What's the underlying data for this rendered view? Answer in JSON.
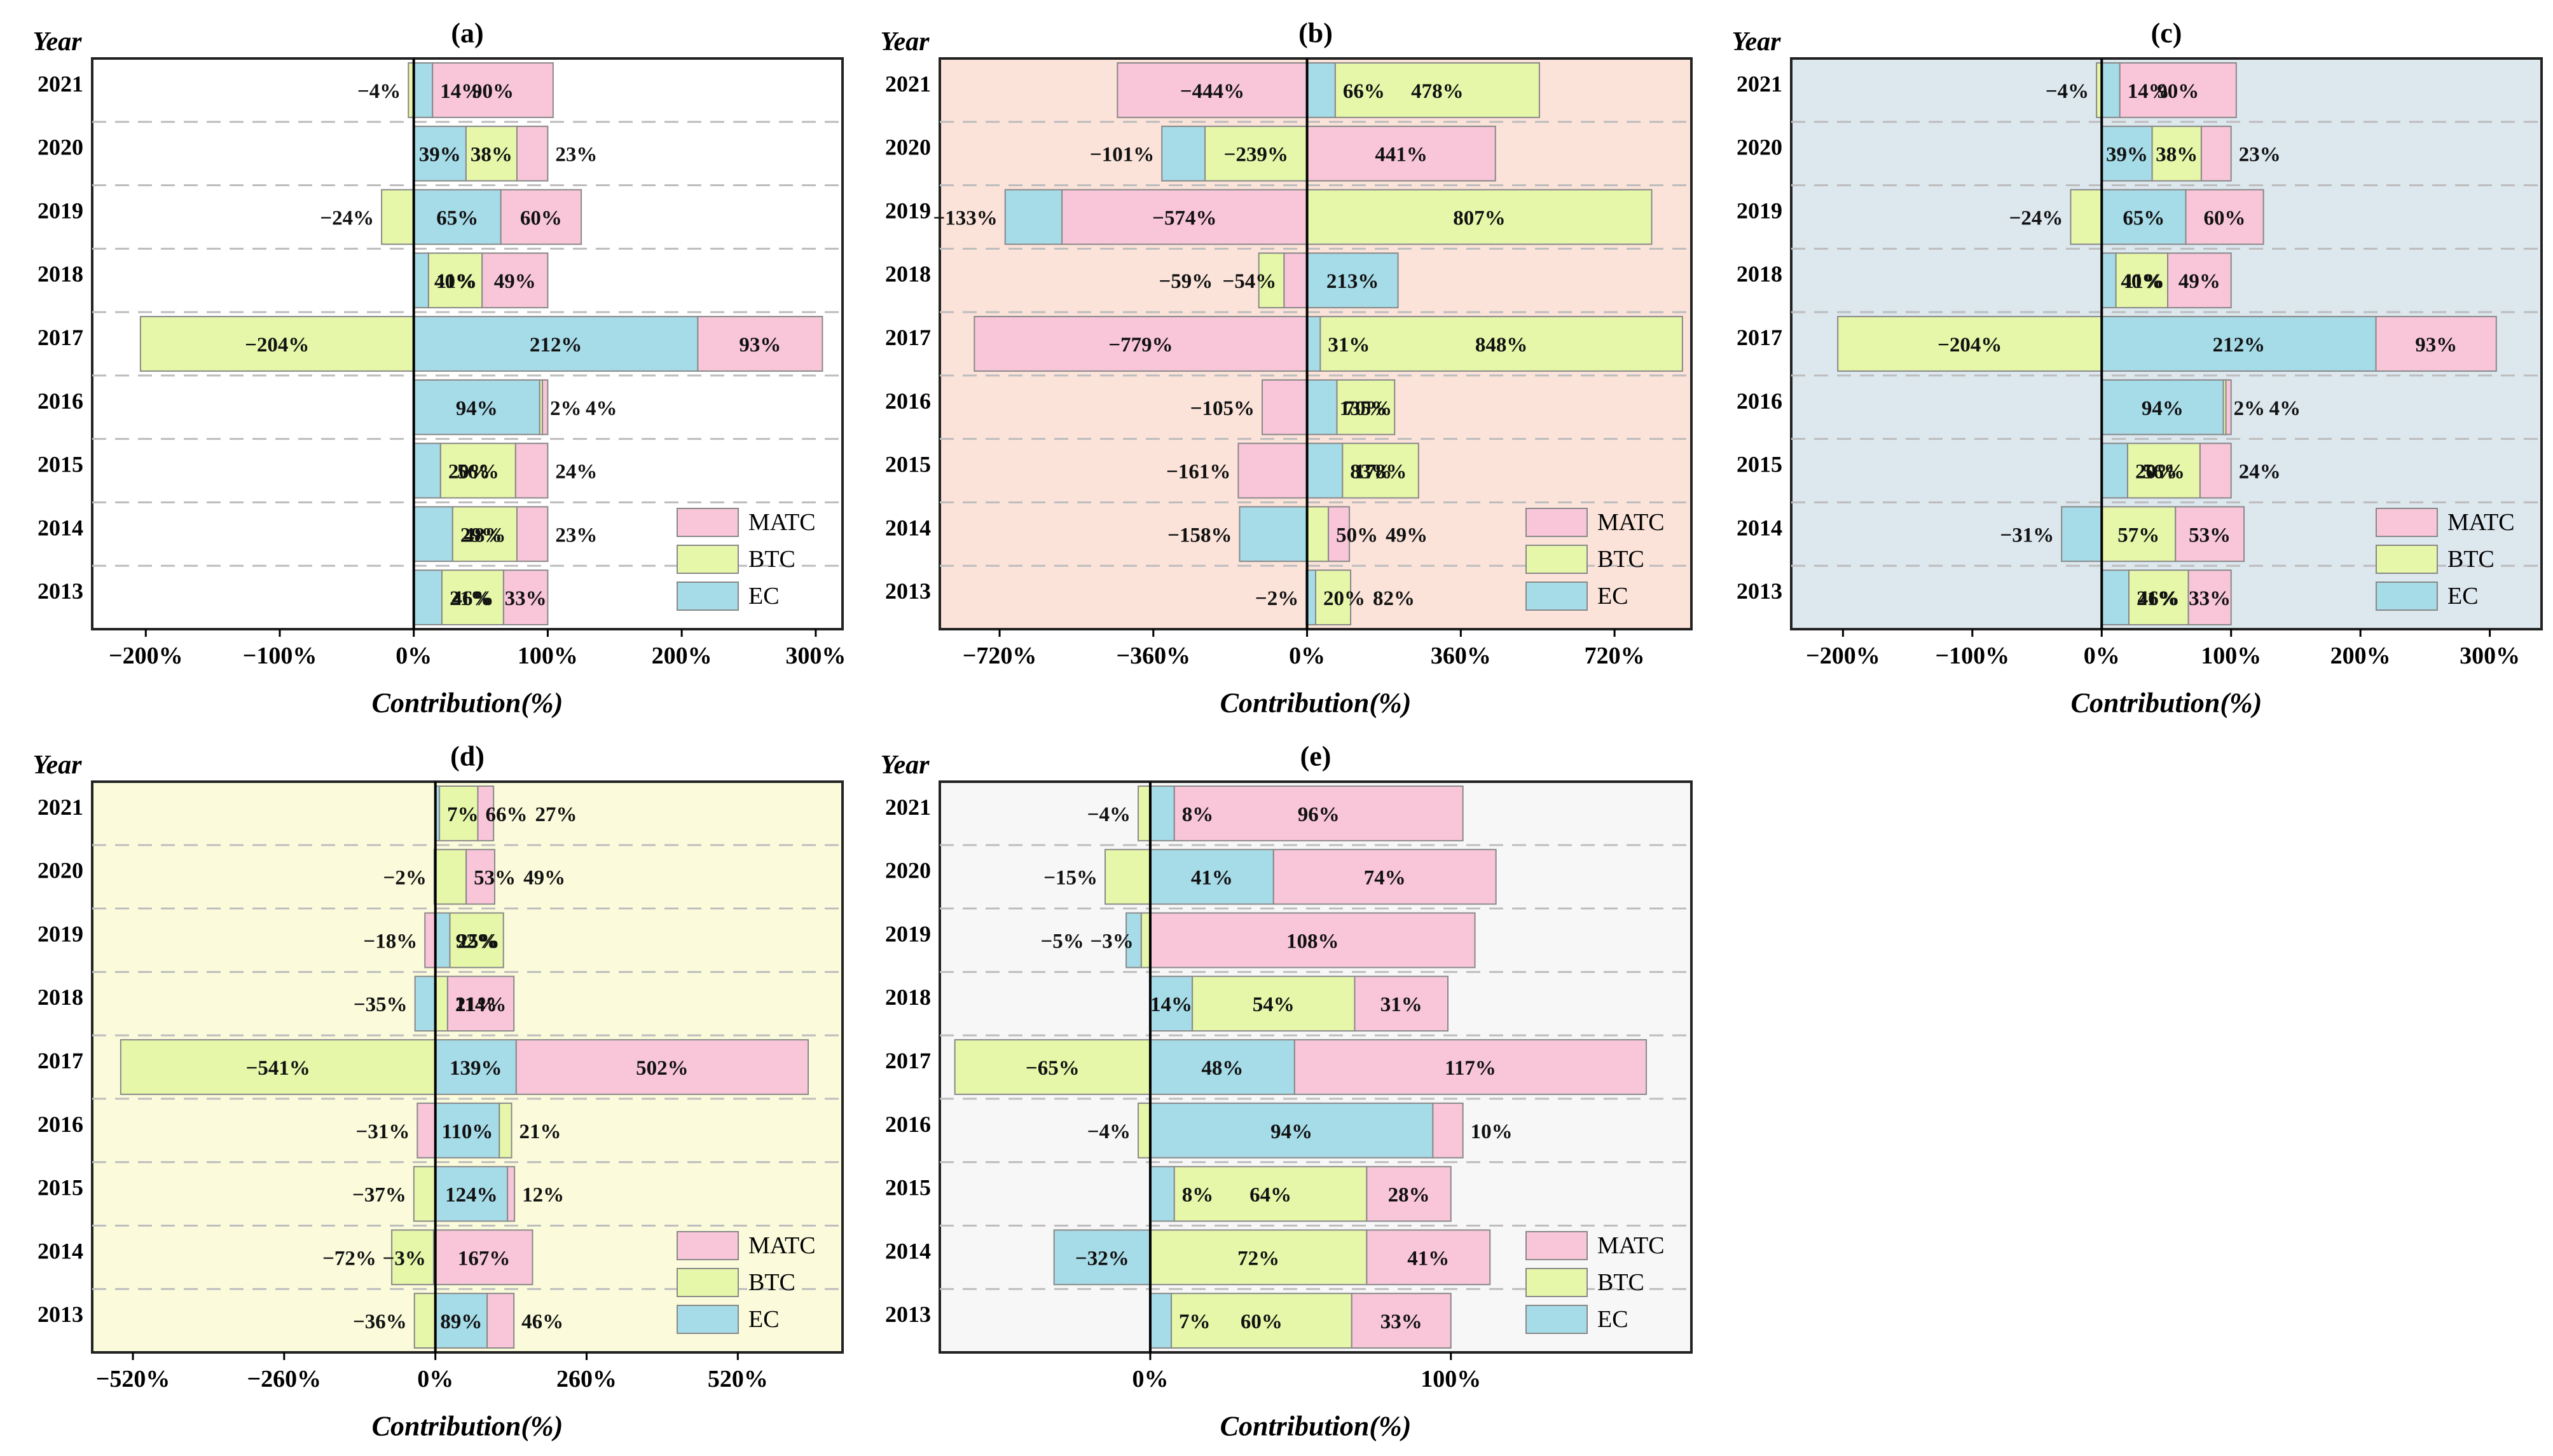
{
  "colors": {
    "MATC": "#f9c6d9",
    "BTC": "#e6f7a9",
    "EC": "#a6dbe8",
    "edge": "#888888"
  },
  "legend": [
    "MATC",
    "BTC",
    "EC"
  ],
  "y_title": "Year",
  "x_title": "Contribution(%)",
  "chart_data": [
    {
      "type": "bar",
      "title": "(a)",
      "background": "#ffffff",
      "xlabel": "Contribution(%)",
      "ylabel": "Year",
      "years": [
        "2021",
        "2020",
        "2019",
        "2018",
        "2017",
        "2016",
        "2015",
        "2014",
        "2013"
      ],
      "xlim": [
        -240,
        320
      ],
      "xticks": [
        -200,
        -100,
        0,
        100,
        200,
        300
      ],
      "xtick_labels": [
        "−200%",
        "−100%",
        "0%",
        "100%",
        "200%",
        "300%"
      ],
      "stacks": [
        [
          {
            "s": "BTC",
            "v": -4,
            "label": "−4%"
          },
          {
            "s": "EC",
            "v": 14,
            "label": "14%"
          },
          {
            "s": "MATC",
            "v": 90,
            "label": "90%"
          }
        ],
        [
          {
            "s": "EC",
            "v": 39,
            "label": "39%"
          },
          {
            "s": "BTC",
            "v": 38,
            "label": "38%"
          },
          {
            "s": "MATC",
            "v": 23,
            "label": "23%"
          }
        ],
        [
          {
            "s": "BTC",
            "v": -24,
            "label": "−24%"
          },
          {
            "s": "EC",
            "v": 65,
            "label": "65%"
          },
          {
            "s": "MATC",
            "v": 60,
            "label": "60%"
          }
        ],
        [
          {
            "s": "EC",
            "v": 11,
            "label": "11%"
          },
          {
            "s": "BTC",
            "v": 40,
            "label": "40%"
          },
          {
            "s": "MATC",
            "v": 49,
            "label": "49%"
          }
        ],
        [
          {
            "s": "BTC",
            "v": -204,
            "label": "−204%"
          },
          {
            "s": "EC",
            "v": 212,
            "label": "212%"
          },
          {
            "s": "MATC",
            "v": 93,
            "label": "93%"
          }
        ],
        [
          {
            "s": "EC",
            "v": 94,
            "label": "94%"
          },
          {
            "s": "BTC",
            "v": 2,
            "label": "2%"
          },
          {
            "s": "MATC",
            "v": 4,
            "label": "4%"
          }
        ],
        [
          {
            "s": "EC",
            "v": 20,
            "label": "20%"
          },
          {
            "s": "BTC",
            "v": 56,
            "label": "56%"
          },
          {
            "s": "MATC",
            "v": 24,
            "label": "24%"
          }
        ],
        [
          {
            "s": "EC",
            "v": 29,
            "label": "29%"
          },
          {
            "s": "BTC",
            "v": 48,
            "label": "48%"
          },
          {
            "s": "MATC",
            "v": 23,
            "label": "23%"
          }
        ],
        [
          {
            "s": "EC",
            "v": 21,
            "label": "21%"
          },
          {
            "s": "BTC",
            "v": 46,
            "label": "46%"
          },
          {
            "s": "MATC",
            "v": 33,
            "label": "33%"
          }
        ]
      ]
    },
    {
      "type": "bar",
      "title": "(b)",
      "background": "#fbe3da",
      "xlabel": "Contribution(%)",
      "ylabel": "Year",
      "years": [
        "2021",
        "2020",
        "2019",
        "2018",
        "2017",
        "2016",
        "2015",
        "2014",
        "2013"
      ],
      "xlim": [
        -860,
        900
      ],
      "xticks": [
        -720,
        -360,
        0,
        360,
        720
      ],
      "xtick_labels": [
        "−720%",
        "−360%",
        "0%",
        "360%",
        "720%"
      ],
      "stacks": [
        [
          {
            "s": "MATC",
            "v": -444,
            "label": "−444%"
          },
          {
            "s": "EC",
            "v": 66,
            "label": "66%"
          },
          {
            "s": "BTC",
            "v": 478,
            "label": "478%"
          }
        ],
        [
          {
            "s": "BTC",
            "v": -239,
            "label": "−239%"
          },
          {
            "s": "EC",
            "v": -101,
            "label": "−101%"
          },
          {
            "s": "MATC",
            "v": 441,
            "label": "441%"
          }
        ],
        [
          {
            "s": "MATC",
            "v": -574,
            "label": "−574%"
          },
          {
            "s": "EC",
            "v": -133,
            "label": "−133%"
          },
          {
            "s": "BTC",
            "v": 807,
            "label": "807%"
          }
        ],
        [
          {
            "s": "MATC",
            "v": -54,
            "label": "−54%"
          },
          {
            "s": "BTC",
            "v": -59,
            "label": "−59%"
          },
          {
            "s": "EC",
            "v": 213,
            "label": "213%"
          }
        ],
        [
          {
            "s": "MATC",
            "v": -779,
            "label": "−779%"
          },
          {
            "s": "EC",
            "v": 31,
            "label": "31%"
          },
          {
            "s": "BTC",
            "v": 848,
            "label": "848%"
          }
        ],
        [
          {
            "s": "MATC",
            "v": -105,
            "label": "−105%"
          },
          {
            "s": "EC",
            "v": 70,
            "label": "70%"
          },
          {
            "s": "BTC",
            "v": 135,
            "label": "135%"
          }
        ],
        [
          {
            "s": "MATC",
            "v": -161,
            "label": "−161%"
          },
          {
            "s": "EC",
            "v": 83,
            "label": "83%"
          },
          {
            "s": "BTC",
            "v": 178,
            "label": "178%"
          }
        ],
        [
          {
            "s": "EC",
            "v": -158,
            "label": "−158%"
          },
          {
            "s": "BTC",
            "v": 50,
            "label": "50%"
          },
          {
            "s": "MATC",
            "v": 49,
            "label": "49%"
          }
        ],
        [
          {
            "s": "MATC",
            "v": -2,
            "label": "−2%"
          },
          {
            "s": "EC",
            "v": 20,
            "label": "20%"
          },
          {
            "s": "BTC",
            "v": 82,
            "label": "82%"
          }
        ]
      ]
    },
    {
      "type": "bar",
      "title": "(c)",
      "background": "#dce7ee",
      "xlabel": "Contribution(%)",
      "ylabel": "Year",
      "years": [
        "2021",
        "2020",
        "2019",
        "2018",
        "2017",
        "2016",
        "2015",
        "2014",
        "2013"
      ],
      "xlim": [
        -240,
        340
      ],
      "xticks": [
        -200,
        -100,
        0,
        100,
        200,
        300
      ],
      "xtick_labels": [
        "−200%",
        "−100%",
        "0%",
        "100%",
        "200%",
        "300%"
      ],
      "stacks": [
        [
          {
            "s": "BTC",
            "v": -4,
            "label": "−4%"
          },
          {
            "s": "EC",
            "v": 14,
            "label": "14%"
          },
          {
            "s": "MATC",
            "v": 90,
            "label": "90%"
          }
        ],
        [
          {
            "s": "EC",
            "v": 39,
            "label": "39%"
          },
          {
            "s": "BTC",
            "v": 38,
            "label": "38%"
          },
          {
            "s": "MATC",
            "v": 23,
            "label": "23%"
          }
        ],
        [
          {
            "s": "BTC",
            "v": -24,
            "label": "−24%"
          },
          {
            "s": "EC",
            "v": 65,
            "label": "65%"
          },
          {
            "s": "MATC",
            "v": 60,
            "label": "60%"
          }
        ],
        [
          {
            "s": "EC",
            "v": 11,
            "label": "11%"
          },
          {
            "s": "BTC",
            "v": 40,
            "label": "40%"
          },
          {
            "s": "MATC",
            "v": 49,
            "label": "49%"
          }
        ],
        [
          {
            "s": "BTC",
            "v": -204,
            "label": "−204%"
          },
          {
            "s": "EC",
            "v": 212,
            "label": "212%"
          },
          {
            "s": "MATC",
            "v": 93,
            "label": "93%"
          }
        ],
        [
          {
            "s": "EC",
            "v": 94,
            "label": "94%"
          },
          {
            "s": "BTC",
            "v": 2,
            "label": "2%"
          },
          {
            "s": "MATC",
            "v": 4,
            "label": "4%"
          }
        ],
        [
          {
            "s": "EC",
            "v": 20,
            "label": "20%"
          },
          {
            "s": "BTC",
            "v": 56,
            "label": "56%"
          },
          {
            "s": "MATC",
            "v": 24,
            "label": "24%"
          }
        ],
        [
          {
            "s": "EC",
            "v": -31,
            "label": "−31%"
          },
          {
            "s": "BTC",
            "v": 57,
            "label": "57%"
          },
          {
            "s": "MATC",
            "v": 53,
            "label": "53%"
          }
        ],
        [
          {
            "s": "EC",
            "v": 21,
            "label": "21%"
          },
          {
            "s": "BTC",
            "v": 46,
            "label": "46%"
          },
          {
            "s": "MATC",
            "v": 33,
            "label": "33%"
          }
        ]
      ]
    },
    {
      "type": "bar",
      "title": "(d)",
      "background": "#fbfbdc",
      "xlabel": "Contribution(%)",
      "ylabel": "Year",
      "years": [
        "2021",
        "2020",
        "2019",
        "2018",
        "2017",
        "2016",
        "2015",
        "2014",
        "2013"
      ],
      "xlim": [
        -590,
        700
      ],
      "xticks": [
        -520,
        -260,
        0,
        260,
        520
      ],
      "xtick_labels": [
        "−520%",
        "−260%",
        "0%",
        "260%",
        "520%"
      ],
      "stacks": [
        [
          {
            "s": "EC",
            "v": 7,
            "label": "7%"
          },
          {
            "s": "BTC",
            "v": 66,
            "label": "66%"
          },
          {
            "s": "MATC",
            "v": 27,
            "label": "27%"
          }
        ],
        [
          {
            "s": "EC",
            "v": -2,
            "label": "−2%"
          },
          {
            "s": "BTC",
            "v": 53,
            "label": "53%"
          },
          {
            "s": "MATC",
            "v": 49,
            "label": "49%"
          }
        ],
        [
          {
            "s": "MATC",
            "v": -18,
            "label": "−18%"
          },
          {
            "s": "EC",
            "v": 25,
            "label": "25%"
          },
          {
            "s": "BTC",
            "v": 92,
            "label": "92%"
          }
        ],
        [
          {
            "s": "EC",
            "v": -35,
            "label": "−35%"
          },
          {
            "s": "BTC",
            "v": 21,
            "label": "21%"
          },
          {
            "s": "MATC",
            "v": 114,
            "label": "114%"
          }
        ],
        [
          {
            "s": "BTC",
            "v": -541,
            "label": "−541%"
          },
          {
            "s": "EC",
            "v": 139,
            "label": "139%"
          },
          {
            "s": "MATC",
            "v": 502,
            "label": "502%"
          }
        ],
        [
          {
            "s": "MATC",
            "v": -31,
            "label": "−31%"
          },
          {
            "s": "EC",
            "v": 110,
            "label": "110%"
          },
          {
            "s": "BTC",
            "v": 21,
            "label": "21%"
          }
        ],
        [
          {
            "s": "BTC",
            "v": -37,
            "label": "−37%"
          },
          {
            "s": "EC",
            "v": 124,
            "label": "124%"
          },
          {
            "s": "MATC",
            "v": 12,
            "label": "12%"
          }
        ],
        [
          {
            "s": "EC",
            "v": -3,
            "label": "−3%"
          },
          {
            "s": "BTC",
            "v": -72,
            "label": "−72%"
          },
          {
            "s": "MATC",
            "v": 167,
            "label": "167%"
          }
        ],
        [
          {
            "s": "BTC",
            "v": -36,
            "label": "−36%"
          },
          {
            "s": "EC",
            "v": 89,
            "label": "89%"
          },
          {
            "s": "MATC",
            "v": 46,
            "label": "46%"
          }
        ]
      ]
    },
    {
      "type": "bar",
      "title": "(e)",
      "background": "#f7f7f7",
      "xlabel": "Contribution(%)",
      "ylabel": "Year",
      "years": [
        "2021",
        "2020",
        "2019",
        "2018",
        "2017",
        "2016",
        "2015",
        "2014",
        "2013"
      ],
      "xlim": [
        -70,
        180
      ],
      "xticks": [
        0,
        100
      ],
      "xtick_labels": [
        "0%",
        "100%"
      ],
      "stacks": [
        [
          {
            "s": "BTC",
            "v": -4,
            "label": "−4%"
          },
          {
            "s": "EC",
            "v": 8,
            "label": "8%"
          },
          {
            "s": "MATC",
            "v": 96,
            "label": "96%"
          }
        ],
        [
          {
            "s": "BTC",
            "v": -15,
            "label": "−15%"
          },
          {
            "s": "EC",
            "v": 41,
            "label": "41%"
          },
          {
            "s": "MATC",
            "v": 74,
            "label": "74%"
          }
        ],
        [
          {
            "s": "BTC",
            "v": -3,
            "label": "−3%"
          },
          {
            "s": "EC",
            "v": -5,
            "label": "−5%"
          },
          {
            "s": "MATC",
            "v": 108,
            "label": "108%"
          }
        ],
        [
          {
            "s": "EC",
            "v": 14,
            "label": "14%"
          },
          {
            "s": "BTC",
            "v": 54,
            "label": "54%"
          },
          {
            "s": "MATC",
            "v": 31,
            "label": "31%"
          }
        ],
        [
          {
            "s": "BTC",
            "v": -65,
            "label": "−65%"
          },
          {
            "s": "EC",
            "v": 48,
            "label": "48%"
          },
          {
            "s": "MATC",
            "v": 117,
            "label": "117%"
          }
        ],
        [
          {
            "s": "BTC",
            "v": -4,
            "label": "−4%"
          },
          {
            "s": "EC",
            "v": 94,
            "label": "94%"
          },
          {
            "s": "MATC",
            "v": 10,
            "label": "10%"
          }
        ],
        [
          {
            "s": "EC",
            "v": 8,
            "label": "8%"
          },
          {
            "s": "BTC",
            "v": 64,
            "label": "64%"
          },
          {
            "s": "MATC",
            "v": 28,
            "label": "28%"
          }
        ],
        [
          {
            "s": "EC",
            "v": -32,
            "label": "−32%"
          },
          {
            "s": "BTC",
            "v": 72,
            "label": "72%"
          },
          {
            "s": "MATC",
            "v": 41,
            "label": "41%"
          }
        ],
        [
          {
            "s": "EC",
            "v": 7,
            "label": "7%"
          },
          {
            "s": "BTC",
            "v": 60,
            "label": "60%"
          },
          {
            "s": "MATC",
            "v": 33,
            "label": "33%"
          }
        ]
      ]
    }
  ]
}
